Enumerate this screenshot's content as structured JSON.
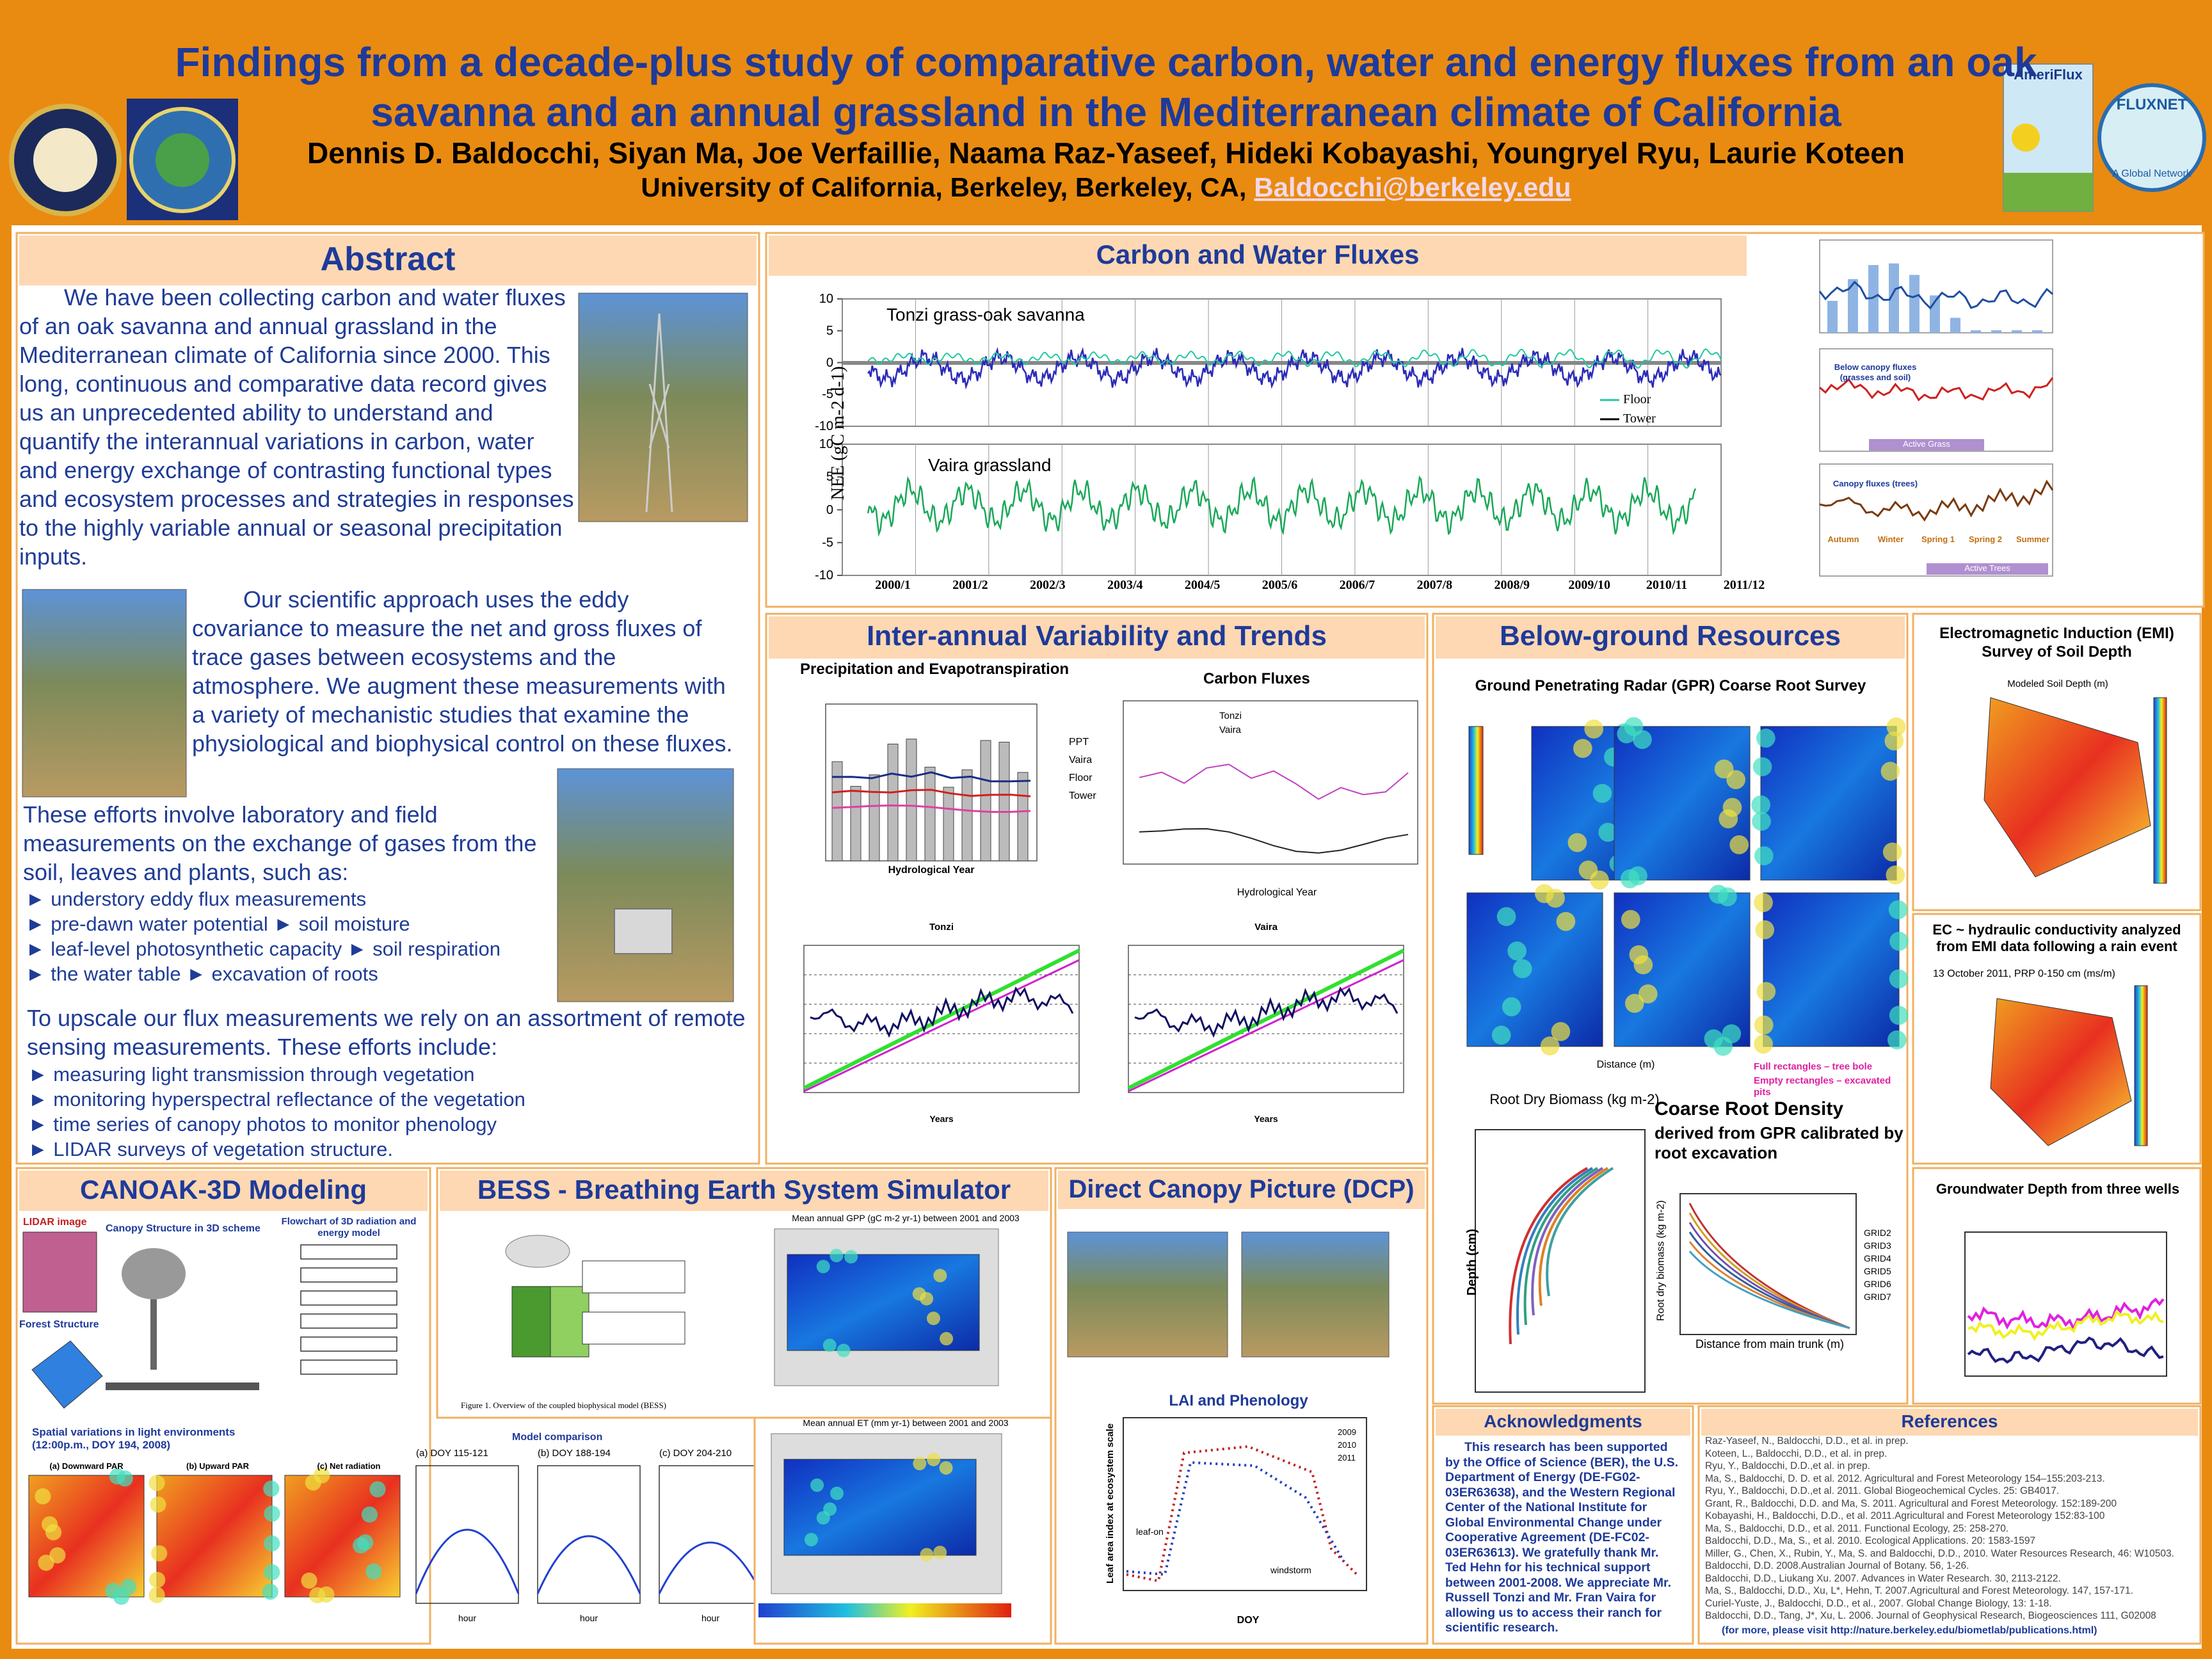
{
  "header": {
    "title": "Findings from a decade-plus study of comparative carbon, water and energy fluxes from an oak savanna and an annual grassland in the Mediterranean climate of California",
    "authors": "Dennis D. Baldocchi, Siyan Ma, Joe Verfaillie, Naama Raz-Yaseef, Hideki Kobayashi, Youngryel Ryu, Laurie Koteen",
    "affiliation": "University of California, Berkeley, Berkeley, CA,",
    "email": "Baldocchi@berkeley.edu",
    "logos": [
      "AmeriFlux",
      "FLUXNET",
      "A Global Network"
    ]
  },
  "abstract": {
    "heading": "Abstract",
    "p1": "We have been collecting carbon and water fluxes of an oak savanna and annual grassland in the Mediterranean climate of California since 2000. This long, continuous and comparative data record gives us an unprecedented ability to understand and quantify the interannual variations in carbon, water and energy exchange of contrasting functional types and ecosystem processes and strategies in responses to the highly variable annual or seasonal precipitation inputs.",
    "p2": "Our scientific approach uses the eddy covariance to measure the net and gross fluxes of trace gases between ecosystems and the atmosphere. We augment these measurements with a variety of mechanistic studies that examine the physiological and biophysical control on these fluxes.",
    "p3": "These efforts involve laboratory and field measurements on the exchange of gases from the soil, leaves and plants, such as:",
    "bullets1": [
      "► understory eddy flux measurements",
      "► pre-dawn water potential ► soil moisture",
      "► leaf-level photosynthetic capacity ► soil respiration",
      "► the water table ► excavation of roots"
    ],
    "p4": "To upscale our flux measurements we rely on an assortment of remote sensing measurements. These efforts include:",
    "bullets2": [
      "► measuring light transmission through vegetation",
      "► monitoring hyperspectral reflectance of the vegetation",
      "► time series of canopy photos to monitor phenology",
      "► LIDAR surveys of vegetation structure."
    ]
  },
  "carbon_water": {
    "heading": "Carbon and Water Fluxes",
    "y_label": "NEE (gC m-2 d-1)",
    "panel1": "Tonzi grass-oak savanna",
    "panel2": "Vaira grassland",
    "legend": [
      "Floor",
      "Tower"
    ],
    "yticks": [
      10,
      5,
      0,
      -5,
      -10
    ],
    "x_labels": [
      "2000/1",
      "2001/2",
      "2002/3",
      "2003/4",
      "2004/5",
      "2005/6",
      "2006/7",
      "2007/8",
      "2008/9",
      "2009/10",
      "2010/11",
      "2011/12"
    ],
    "right_labels": [
      "Below canopy fluxes (grasses and soil)",
      "Active Grass",
      "Canopy fluxes (trees)",
      "Active Trees"
    ],
    "seasons": [
      "Autumn",
      "Winter",
      "Spring 1",
      "Spring 2",
      "Summer"
    ]
  },
  "interannual": {
    "heading": "Inter-annual Variability and Trends",
    "ppt_title": "Precipitation and Evapotranspiration",
    "carbon_title": "Carbon Fluxes",
    "x_label": "Hydrological Year",
    "ppt_legend": [
      "PPT",
      "Vaira",
      "Floor",
      "Tower"
    ],
    "carbon_legend": [
      "Tonzi",
      "Vaira"
    ],
    "cum_titles": [
      "Tonzi",
      "Vaira"
    ],
    "cum_x_label": "Years"
  },
  "belowground": {
    "heading": "Below-ground Resources",
    "gpr_title": "Ground Penetrating Radar (GPR) Coarse Root Survey",
    "axis": "Distance (m)",
    "notes": [
      "Full rectangles – tree bole",
      "Empty rectangles – excavated pits"
    ],
    "biomass_title": "Root Dry Biomass (kg m-2)",
    "depth_label": "Depth (cm)",
    "density_title": "Coarse Root Density",
    "density_sub": "derived from GPR calibrated by root excavation",
    "density_x": "Distance from main trunk (m)",
    "density_y": "Root dry biomass (kg m-2)",
    "grids": [
      "GRID2",
      "GRID3",
      "GRID4",
      "GRID5",
      "GRID6",
      "GRID7"
    ]
  },
  "emi": {
    "heading": "Electromagnetic Induction (EMI) Survey of Soil Depth",
    "map_title": "Modeled Soil Depth (m)"
  },
  "ec": {
    "heading": "EC ~ hydraulic conductivity analyzed from EMI data following a rain event",
    "map_title": "13 October 2011, PRP 0-150 cm (ms/m)"
  },
  "groundwater": {
    "heading": "Groundwater Depth from three wells"
  },
  "canoak": {
    "heading": "CANOAK-3D Modeling",
    "lidar": "LIDAR image",
    "structure": "Canopy Structure in 3D scheme",
    "flowchart": "Flowchart of 3D radiation and energy model",
    "forest": "Forest Structure",
    "light": "Spatial variations in light environments (12:00p.m., DOY 194, 2008)",
    "maps": [
      "(a) Downward PAR",
      "(b) Upward PAR",
      "(c) Net radiation"
    ],
    "comparison": "Model comparison",
    "periods": [
      "(a) DOY 115-121",
      "(b) DOY 188-194",
      "(c) DOY 204-210"
    ],
    "x_label": "hour"
  },
  "bess": {
    "heading": "BESS -  Breathing Earth System Simulator",
    "gpp": "Mean annual GPP (gC m-2 yr-1) between 2001 and 2003",
    "et": "Mean annual ET (mm yr-1) between 2001 and 2003",
    "caption": "Figure 1.  Overview of the coupled biophysical model (BESS)"
  },
  "dcp": {
    "heading": "Direct Canopy Picture (DCP)",
    "lai_title": "LAI and Phenology",
    "y_label": "Leaf area index at ecosystem scale",
    "x_label": "DOY",
    "notes": [
      "leaf-on",
      "windstorm"
    ],
    "legend": [
      "2009",
      "2010",
      "2011"
    ]
  },
  "acknowledgments": {
    "heading": "Acknowledgments",
    "text": "This research has been supported by the Office of Science (BER), the U.S. Department of Energy (DE-FG02-03ER63638), and the Western Regional Center of the National Institute for Global Environmental Change under Cooperative Agreement (DE-FC02-03ER63613). We gratefully thank Mr. Ted Hehn for his technical support between 2001-2008. We appreciate Mr. Russell Tonzi and Mr. Fran Vaira for allowing us to access their ranch for scientific research."
  },
  "references": {
    "heading": "References",
    "items": [
      "Raz-Yaseef, N., Baldocchi, D.D., et al. in prep.",
      "Koteen, L., Baldocchi, D.D., et al. in prep.",
      "Ryu, Y., Baldocchi, D.D.,et al. in prep.",
      "Ma, S., Baldocchi, D. D. et al. 2012. Agricultural and Forest Meteorology 154–155:203-213.",
      "Ryu, Y., Baldocchi, D.D.,et al. 2011. Global Biogeochemical Cycles. 25: GB4017.",
      "Grant, R., Baldocchi, D.D. and Ma, S. 2011. Agricultural and Forest Meteorology. 152:189-200",
      "Kobayashi, H., Baldocchi, D.D., et al. 2011.Agricultural and Forest Meteorology 152:83-100",
      "Ma, S., Baldocchi, D.D., et al. 2011. Functional Ecology, 25: 258-270.",
      "Baldocchi, D.D., Ma, S., et al. 2010. Ecological Applications. 20: 1583-1597",
      "Miller, G., Chen, X., Rubin, Y., Ma, S. and Baldocchi, D.D., 2010. Water Resources Research, 46: W10503.",
      "Baldocchi, D.D. 2008.Australian Journal of Botany. 56, 1-26.",
      "Baldocchi, D.D., Liukang Xu. 2007. Advances in Water Research. 30, 2113-2122.",
      "Ma, S., Baldocchi, D.D., Xu, L*, Hehn, T. 2007.Agricultural and Forest Meteorology. 147, 157-171.",
      "Curiel-Yuste, J., Baldocchi, D.D., et al., 2007. Global Change Biology, 13: 1-18.",
      "Baldocchi, D.D., Tang, J*, Xu, L. 2006. Journal of Geophysical Research, Biogeosciences 111, G02008"
    ],
    "more": "(for more, please visit http://nature.berkeley.edu/biometlab/publications.html)"
  }
}
